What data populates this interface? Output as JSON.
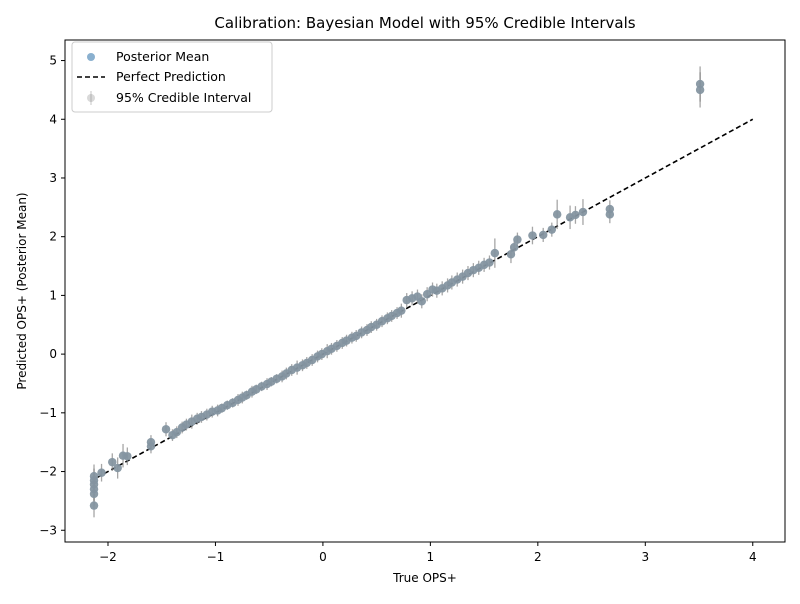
{
  "chart_data": {
    "type": "scatter",
    "title": "Calibration: Bayesian Model with 95% Credible Intervals",
    "xlabel": "True OPS+",
    "ylabel": "Predicted OPS+ (Posterior Mean)",
    "xlim": [
      -2.4,
      4.3
    ],
    "ylim": [
      -3.2,
      5.35
    ],
    "xticks": [
      -2,
      -1,
      0,
      1,
      2,
      3,
      4
    ],
    "yticks": [
      -3,
      -2,
      -1,
      0,
      1,
      2,
      3,
      4,
      5
    ],
    "xtick_labels": [
      "−2",
      "−1",
      "0",
      "1",
      "2",
      "3",
      "4"
    ],
    "ytick_labels": [
      "−3",
      "−2",
      "−1",
      "0",
      "1",
      "2",
      "3",
      "4",
      "5"
    ],
    "grid": false,
    "legend": {
      "placement": "upper-left",
      "entries": [
        "Posterior Mean",
        "Perfect Prediction",
        "95% Credible Interval"
      ]
    },
    "colors": {
      "posterior_mean": "#8ab0cf",
      "interval": "#808080",
      "reference_line": "#000000"
    },
    "reference_line": {
      "name": "Perfect Prediction",
      "x": [
        -2.1,
        4.0
      ],
      "y": [
        -2.1,
        4.0
      ]
    },
    "series": [
      {
        "name": "Posterior Mean",
        "x": [
          -2.13,
          -2.13,
          -2.13,
          -2.13,
          -2.13,
          -2.13,
          -2.06,
          -1.96,
          -1.91,
          -1.86,
          -1.82,
          -1.6,
          -1.6,
          -1.46,
          -1.4,
          -1.36,
          -1.31,
          -1.27,
          -1.22,
          -1.17,
          -1.13,
          -1.08,
          -1.03,
          -0.98,
          -0.94,
          -0.89,
          -0.84,
          -0.79,
          -0.75,
          -0.71,
          -0.66,
          -0.62,
          -0.57,
          -0.52,
          -0.48,
          -0.43,
          -0.38,
          -0.34,
          -0.29,
          -0.24,
          -0.19,
          -0.15,
          -0.1,
          -0.05,
          -0.01,
          0.04,
          0.08,
          0.13,
          0.18,
          0.22,
          0.27,
          0.31,
          0.36,
          0.41,
          0.45,
          0.5,
          0.55,
          0.6,
          0.64,
          0.69,
          0.73,
          0.78,
          0.83,
          0.88,
          0.92,
          0.97,
          1.02,
          1.06,
          1.11,
          1.16,
          1.2,
          1.25,
          1.3,
          1.35,
          1.4,
          1.45,
          1.5,
          1.55,
          1.6,
          1.75,
          1.78,
          1.81,
          1.95,
          2.05,
          2.13,
          2.18,
          2.3,
          2.35,
          2.42,
          2.67,
          2.67,
          3.51,
          3.51
        ],
        "y": [
          -2.58,
          -2.38,
          -2.3,
          -2.22,
          -2.15,
          -2.08,
          -2.02,
          -1.84,
          -1.94,
          -1.73,
          -1.74,
          -1.5,
          -1.57,
          -1.28,
          -1.38,
          -1.33,
          -1.25,
          -1.2,
          -1.15,
          -1.1,
          -1.07,
          -1.03,
          -0.98,
          -0.96,
          -0.92,
          -0.87,
          -0.83,
          -0.78,
          -0.74,
          -0.7,
          -0.64,
          -0.6,
          -0.55,
          -0.51,
          -0.47,
          -0.42,
          -0.38,
          -0.33,
          -0.27,
          -0.23,
          -0.19,
          -0.15,
          -0.1,
          -0.04,
          0.0,
          0.05,
          0.09,
          0.14,
          0.19,
          0.23,
          0.28,
          0.31,
          0.37,
          0.41,
          0.46,
          0.5,
          0.56,
          0.61,
          0.65,
          0.7,
          0.74,
          0.92,
          0.95,
          0.98,
          0.9,
          1.02,
          1.1,
          1.08,
          1.12,
          1.17,
          1.22,
          1.27,
          1.32,
          1.38,
          1.43,
          1.47,
          1.52,
          1.56,
          1.72,
          1.7,
          1.82,
          1.95,
          2.02,
          2.03,
          2.12,
          2.38,
          2.33,
          2.37,
          2.42,
          2.38,
          2.47,
          4.5,
          4.6
        ],
        "err": [
          0.2,
          0.2,
          0.2,
          0.2,
          0.2,
          0.2,
          0.15,
          0.15,
          0.18,
          0.2,
          0.15,
          0.12,
          0.12,
          0.12,
          0.1,
          0.1,
          0.1,
          0.1,
          0.12,
          0.1,
          0.1,
          0.1,
          0.1,
          0.1,
          0.08,
          0.08,
          0.08,
          0.1,
          0.1,
          0.08,
          0.1,
          0.08,
          0.08,
          0.1,
          0.08,
          0.08,
          0.1,
          0.1,
          0.1,
          0.12,
          0.1,
          0.1,
          0.1,
          0.1,
          0.1,
          0.12,
          0.1,
          0.1,
          0.1,
          0.1,
          0.1,
          0.1,
          0.1,
          0.1,
          0.1,
          0.1,
          0.1,
          0.1,
          0.1,
          0.1,
          0.12,
          0.12,
          0.12,
          0.12,
          0.12,
          0.12,
          0.12,
          0.12,
          0.12,
          0.12,
          0.12,
          0.12,
          0.12,
          0.12,
          0.12,
          0.12,
          0.12,
          0.12,
          0.25,
          0.15,
          0.12,
          0.12,
          0.15,
          0.12,
          0.12,
          0.25,
          0.2,
          0.15,
          0.22,
          0.15,
          0.15,
          0.3,
          0.3
        ]
      }
    ]
  }
}
